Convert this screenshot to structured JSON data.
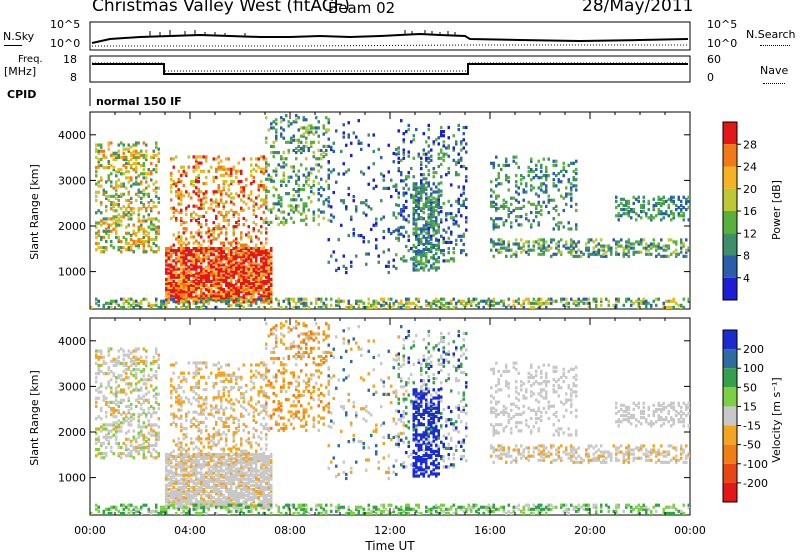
{
  "header": {
    "title": "Christmas Valley West (fitACF)",
    "beam": "Beam 02",
    "date": "28/May/2011"
  },
  "panels": {
    "nsky": {
      "left_label": "N.Sky",
      "right_label": "N.Search",
      "left_ticks": [
        "10^5",
        "10^0"
      ],
      "right_ticks": [
        "10^5",
        "10^0"
      ]
    },
    "freq": {
      "left_label_line1": "Freq.",
      "left_label_line2": "[MHz]",
      "right_label": "Nave",
      "left_ticks": [
        "18",
        "8"
      ],
      "right_ticks": [
        "60",
        "0"
      ]
    },
    "cpid": {
      "label": "CPID",
      "program": "normal 150 IF"
    }
  },
  "chart_data": [
    {
      "type": "heatmap",
      "name": "power",
      "ylabel": "Slant Range [km]",
      "ylim": [
        180,
        4500
      ],
      "y_ticks": [
        "1000",
        "2000",
        "3000",
        "4000"
      ],
      "colorbar": {
        "label": "Power [dB]",
        "ticks": [
          "4",
          "8",
          "12",
          "16",
          "20",
          "24",
          "28"
        ],
        "colors": [
          "#1d1dd6",
          "#2a5ea8",
          "#3c8f69",
          "#59b03a",
          "#bcc836",
          "#f3b322",
          "#f07a16",
          "#e31717"
        ]
      }
    },
    {
      "type": "heatmap",
      "name": "velocity",
      "ylabel": "Slant Range [km]",
      "ylim": [
        180,
        4500
      ],
      "y_ticks": [
        "1000",
        "2000",
        "3000",
        "4000"
      ],
      "colorbar": {
        "label": "Velocity [m s⁻¹]",
        "ticks": [
          "200",
          "100",
          "50",
          "15",
          "-15",
          "-50",
          "-100",
          "-200"
        ],
        "colors": [
          "#1a2bd0",
          "#2f6aa0",
          "#34a04b",
          "#7cd044",
          "#c8c8c8",
          "#f2a521",
          "#f07e14",
          "#e84614",
          "#e31717"
        ]
      }
    }
  ],
  "xaxis": {
    "ticks": [
      "00:00",
      "04:00",
      "08:00",
      "12:00",
      "16:00",
      "20:00",
      "00:00"
    ],
    "label": "Time UT"
  }
}
